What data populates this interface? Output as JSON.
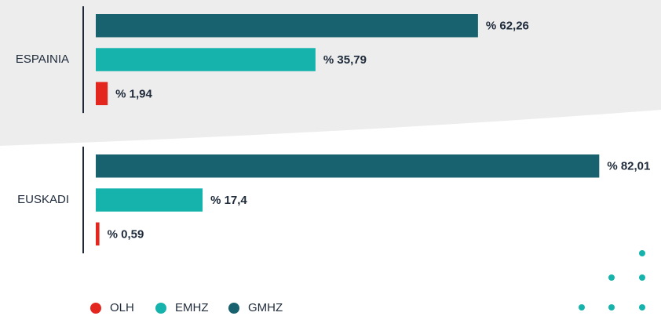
{
  "chart_data": {
    "type": "bar",
    "orientation": "horizontal",
    "categories": [
      "ESPAINIA",
      "EUSKADI"
    ],
    "series": [
      {
        "name": "OLH",
        "color": "#e3261e",
        "values": [
          1.94,
          0.59
        ],
        "value_labels": [
          "% 1,94",
          "% 0,59"
        ]
      },
      {
        "name": "EMHZ",
        "color": "#16b3ad",
        "values": [
          35.79,
          17.4
        ],
        "value_labels": [
          "% 35,79",
          "% 17,4"
        ]
      },
      {
        "name": "GMHZ",
        "color": "#17626e",
        "values": [
          62.26,
          82.01
        ],
        "value_labels": [
          "% 62,26",
          "% 82,01"
        ]
      }
    ]
  }
}
